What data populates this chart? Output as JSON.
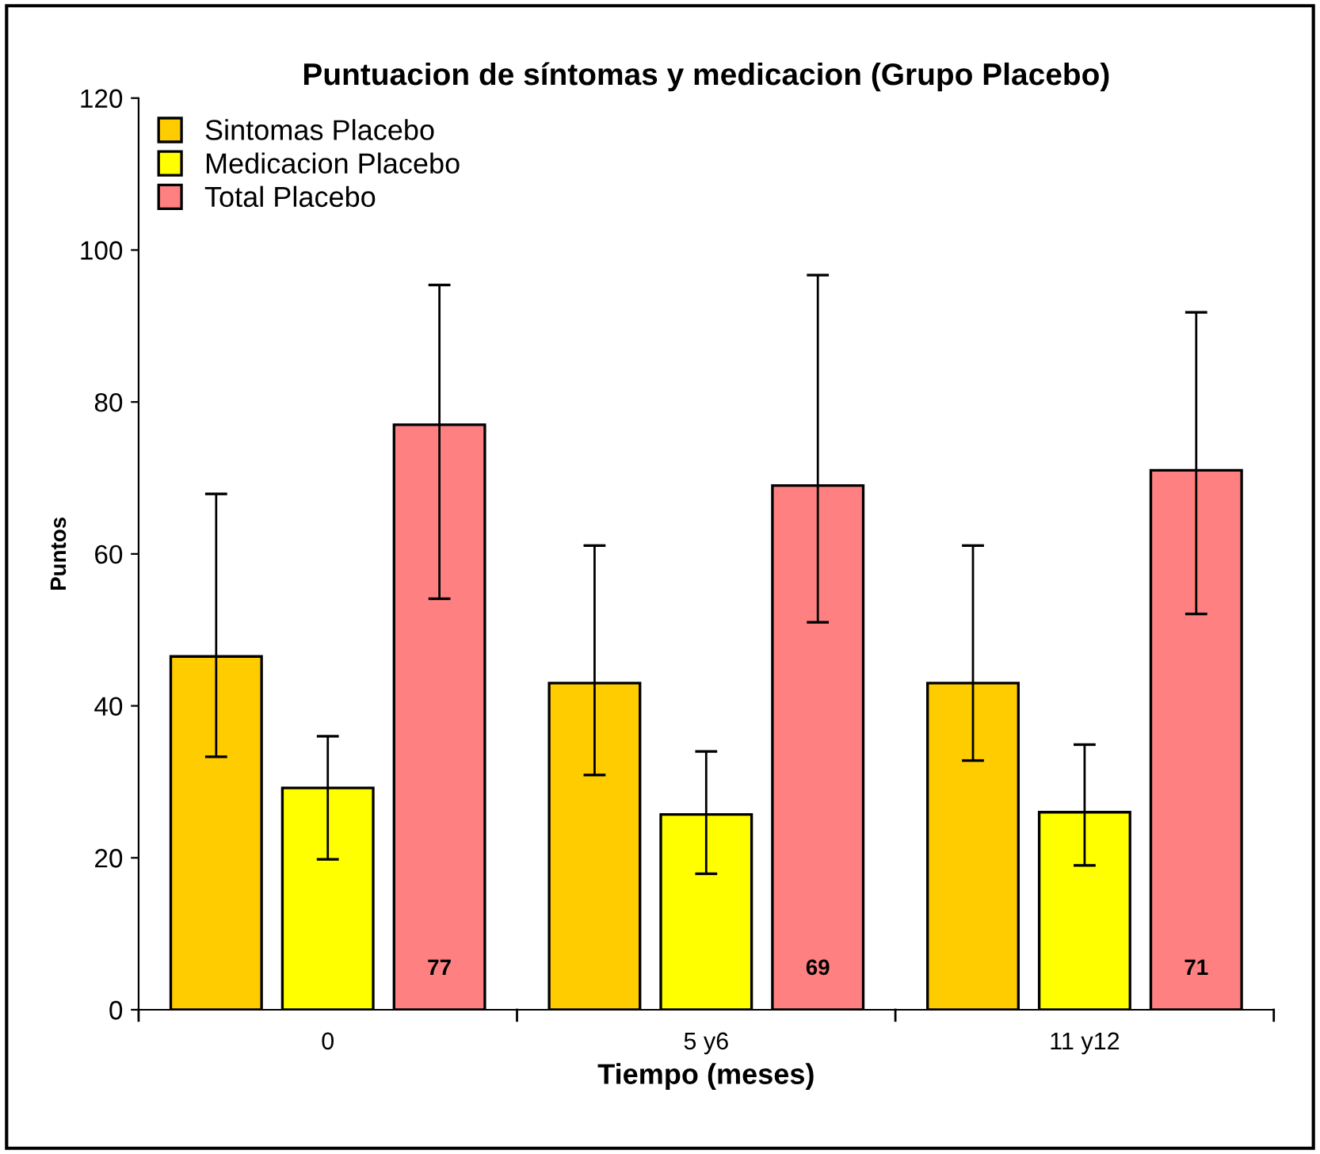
{
  "chart_data": {
    "type": "bar",
    "title": "Puntuacion de síntomas y medicacion (Grupo Placebo)",
    "xlabel": "Tiempo (meses)",
    "ylabel": "Puntos",
    "categories": [
      "0",
      "5 y6",
      "11 y12"
    ],
    "series": [
      {
        "name": "Sintomas Placebo",
        "color": "#ffcc00",
        "values": [
          46.5,
          43.0,
          43.0
        ],
        "errors": [
          [
            33.3,
            67.9
          ],
          [
            30.9,
            61.1
          ],
          [
            32.8,
            61.1
          ]
        ]
      },
      {
        "name": "Medicacion Placebo",
        "color": "#ffff00",
        "values": [
          29.2,
          25.7,
          26.0
        ],
        "errors": [
          [
            19.8,
            36.0
          ],
          [
            17.9,
            34.0
          ],
          [
            19.0,
            34.9
          ]
        ]
      },
      {
        "name": "Total Placebo",
        "color": "#ff8080",
        "values": [
          77,
          69,
          71
        ],
        "errors": [
          [
            54.1,
            95.4
          ],
          [
            51.0,
            96.7
          ],
          [
            52.1,
            91.8
          ]
        ],
        "value_labels": [
          "77",
          "69",
          "71"
        ]
      }
    ],
    "ylim": [
      0,
      120
    ],
    "yticks": [
      0,
      20,
      40,
      60,
      80,
      100,
      120
    ],
    "grid": false,
    "legend": "top left"
  }
}
